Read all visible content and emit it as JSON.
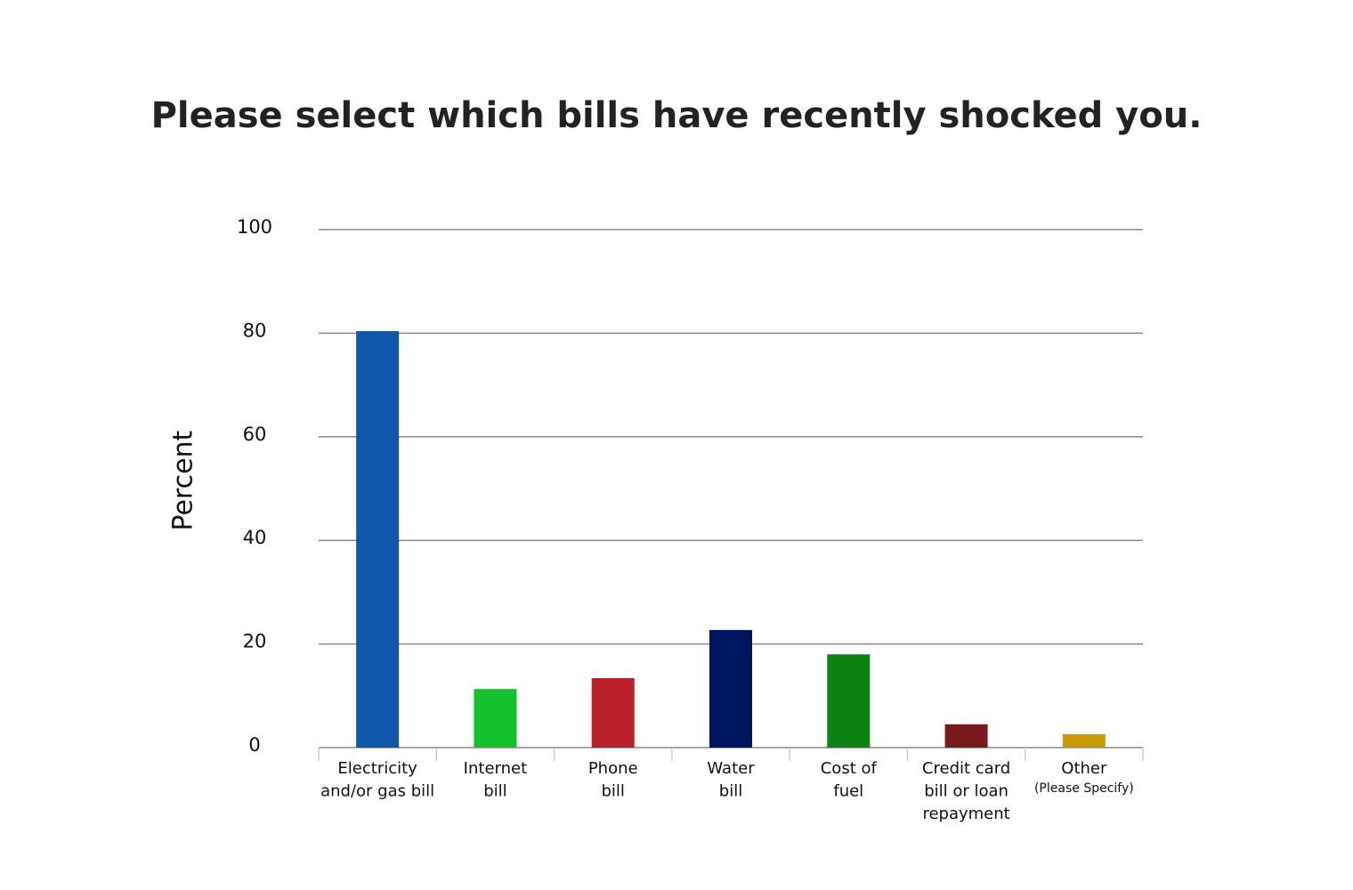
{
  "chart_data": {
    "type": "bar",
    "title": "Please select which bills have recently shocked you.",
    "y_label": "Percent",
    "categories": [
      [
        "Electricity",
        "and/or gas bill"
      ],
      [
        "Internet",
        "bill"
      ],
      [
        "Phone",
        "bill"
      ],
      [
        "Water",
        "bill"
      ],
      [
        "Cost of",
        "fuel"
      ],
      [
        "Credit card",
        "bill or loan",
        "repayment"
      ],
      [
        "Other",
        "(Please Specify)"
      ]
    ],
    "values": [
      80.4,
      11.3,
      13.4,
      22.7,
      18.0,
      4.5,
      2.6
    ],
    "colors": [
      "#1057aa",
      "#13c02b",
      "#b81f2b",
      "#001560",
      "#0b8212",
      "#761a1e",
      "#c99a05"
    ],
    "ylim": [
      0,
      100
    ],
    "yticks": [
      0,
      20,
      40,
      60,
      80,
      100
    ],
    "grid": true
  }
}
